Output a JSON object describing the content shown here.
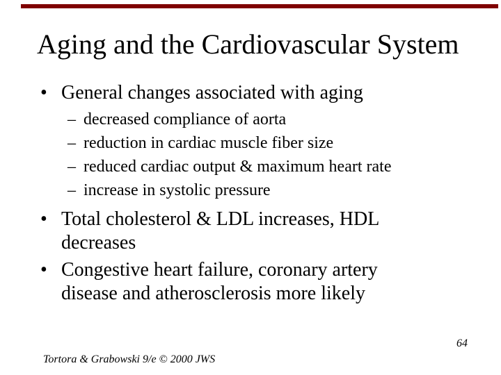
{
  "slide": {
    "title": "Aging and the Cardiovascular System",
    "accent_color": "#7f0000",
    "bullet_glyph": "•",
    "sub_bullet_glyph": "–",
    "bullets": [
      {
        "label": "General changes associated with aging",
        "sub": [
          "decreased compliance of aorta",
          "reduction in cardiac muscle fiber size",
          "reduced cardiac output & maximum heart rate",
          "increase in systolic pressure"
        ]
      },
      {
        "label": "Total cholesterol & LDL increases, HDL decreases",
        "sub": []
      },
      {
        "label": "Congestive heart failure, coronary artery disease and atherosclerosis more likely",
        "sub": []
      }
    ],
    "page_number": "64",
    "footer": "Tortora & Grabowski 9/e © 2000 JWS"
  }
}
